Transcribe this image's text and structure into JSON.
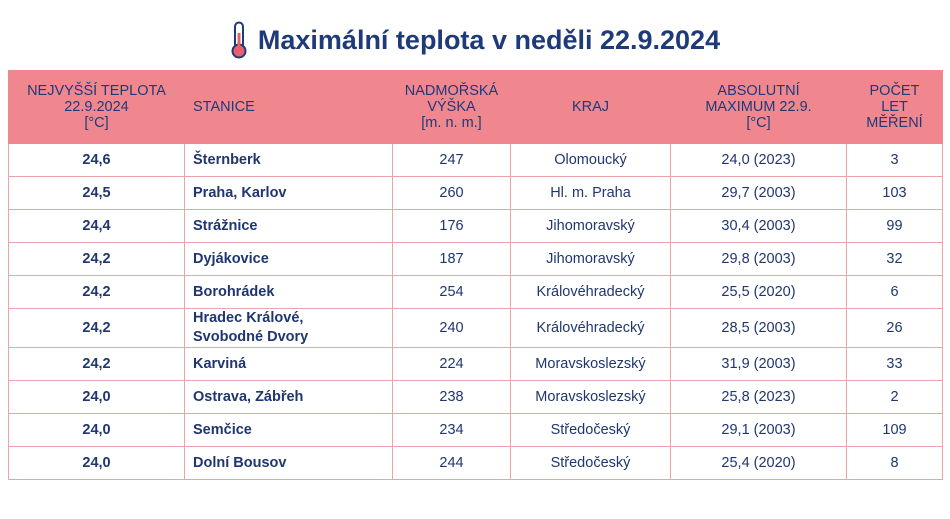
{
  "title": "Maximální teplota v neděli 22.9.2024",
  "table": {
    "header": [
      "NEJVYŠŠÍ TEPLOTA\n22.9.2024\n[°C]",
      "STANICE",
      "NADMOŘSKÁ\nVÝŠKA\n[m. n. m.]",
      "KRAJ",
      "ABSOLUTNÍ\nMAXIMUM 22.9.\n[°C]",
      "POČET\nLET\nMĚŘENÍ"
    ],
    "rows": [
      [
        "24,6",
        "Šternberk",
        "247",
        "Olomoucký",
        "24,0 (2023)",
        "3"
      ],
      [
        "24,5",
        "Praha, Karlov",
        "260",
        "Hl. m. Praha",
        "29,7 (2003)",
        "103"
      ],
      [
        "24,4",
        "Strážnice",
        "176",
        "Jihomoravský",
        "30,4 (2003)",
        "99"
      ],
      [
        "24,2",
        "Dyjákovice",
        "187",
        "Jihomoravský",
        "29,8 (2003)",
        "32"
      ],
      [
        "24,2",
        "Borohrádek",
        "254",
        "Královéhradecký",
        "25,5 (2020)",
        "6"
      ],
      [
        "24,2",
        "Hradec Králové, Svobodné Dvory",
        "240",
        "Královéhradecký",
        "28,5 (2003)",
        "26"
      ],
      [
        "24,2",
        "Karviná",
        "224",
        "Moravskoslezský",
        "31,9 (2003)",
        "33"
      ],
      [
        "24,0",
        "Ostrava, Zábřeh",
        "238",
        "Moravskoslezský",
        "25,8 (2023)",
        "2"
      ],
      [
        "24,0",
        "Semčice",
        "234",
        "Středočeský",
        "29,1 (2003)",
        "109"
      ],
      [
        "24,0",
        "Dolní Bousov",
        "244",
        "Středočeský",
        "25,4 (2020)",
        "8"
      ]
    ]
  }
}
